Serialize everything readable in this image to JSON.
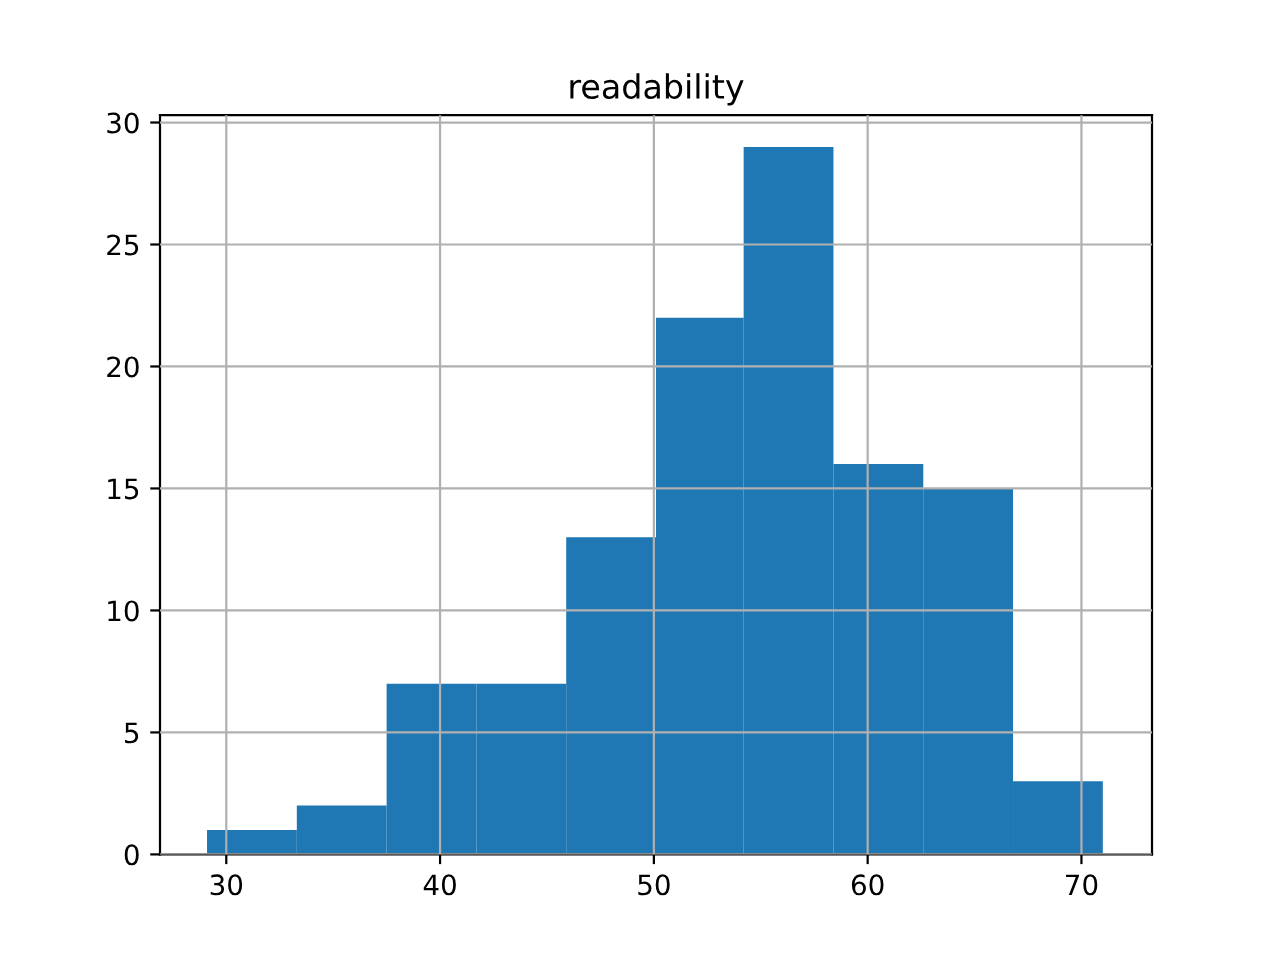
{
  "chart_data": {
    "type": "histogram",
    "title": "readability",
    "bins": [
      29.1,
      33.3,
      37.5,
      41.7,
      45.9,
      50.1,
      54.2,
      58.4,
      62.6,
      66.8,
      71.0
    ],
    "values": [
      1,
      2,
      7,
      7,
      13,
      22,
      29,
      16,
      15,
      3
    ],
    "color": "#1f77b4",
    "xlim": [
      26.9,
      73.3
    ],
    "xticks": [
      30,
      40,
      50,
      60,
      70
    ],
    "ylim": [
      0,
      30.3
    ],
    "yticks": [
      0,
      5,
      10,
      15,
      20,
      25,
      30
    ],
    "grid": true
  }
}
